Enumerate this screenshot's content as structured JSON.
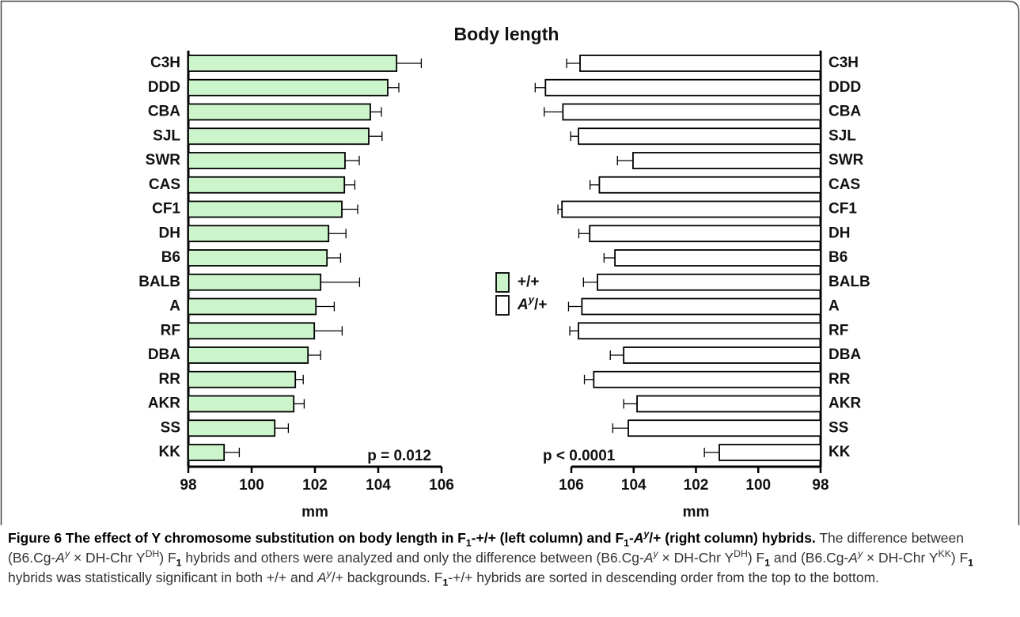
{
  "figure": {
    "title": "Body length",
    "caption": [
      {
        "text": "Figure 6 The effect of Y chromosome substitution on body length in F",
        "style": "b"
      },
      {
        "text": "1",
        "style": "bsub"
      },
      {
        "text": "-+/+ (left column) and F",
        "style": "b"
      },
      {
        "text": "1",
        "style": "bsub"
      },
      {
        "text": "-",
        "style": "b"
      },
      {
        "text": "A",
        "style": "bi"
      },
      {
        "text": "y",
        "style": "bisup"
      },
      {
        "text": "/+ (right column) hybrids.",
        "style": "b"
      },
      {
        "text": " The difference between (B6.Cg-"
      },
      {
        "text": "A",
        "style": "i"
      },
      {
        "text": "y",
        "style": "isup"
      },
      {
        "text": " × DH-Chr Y"
      },
      {
        "text": "DH",
        "style": "sup"
      },
      {
        "text": ") F"
      },
      {
        "text": "1",
        "style": "sub"
      },
      {
        "text": " hybrids and others were analyzed and only the difference between (B6.Cg-"
      },
      {
        "text": "A",
        "style": "i"
      },
      {
        "text": "y",
        "style": "isup"
      },
      {
        "text": " × DH-Chr Y"
      },
      {
        "text": "DH",
        "style": "sup"
      },
      {
        "text": ") F"
      },
      {
        "text": "1",
        "style": "sub"
      },
      {
        "text": " and (B6.Cg-"
      },
      {
        "text": "A",
        "style": "i"
      },
      {
        "text": "y",
        "style": "isup"
      },
      {
        "text": " × DH-Chr Y"
      },
      {
        "text": "KK",
        "style": "sup"
      },
      {
        "text": ") F"
      },
      {
        "text": "1",
        "style": "sub"
      },
      {
        "text": " hybrids was statistically significant in both +/+ and "
      },
      {
        "text": "A",
        "style": "i"
      },
      {
        "text": "y",
        "style": "isup"
      },
      {
        "text": "/+ backgrounds. F"
      },
      {
        "text": "1",
        "style": "sub"
      },
      {
        "text": "-+/+ hybrids are sorted in descending order from the top to the bottom."
      }
    ]
  },
  "chart_data": [
    {
      "type": "hbar",
      "xlabel": "mm",
      "annotation": "p = 0.012",
      "categories": [
        "C3H",
        "DDD",
        "CBA",
        "SJL",
        "SWR",
        "CAS",
        "CF1",
        "DH",
        "B6",
        "BALB",
        "A",
        "RF",
        "DBA",
        "RR",
        "AKR",
        "SS",
        "KK"
      ],
      "series": [
        {
          "name": [
            {
              "text": "+/+"
            }
          ],
          "color": "#ccf5cc",
          "values": [
            104.58,
            104.3,
            103.75,
            103.7,
            102.95,
            102.93,
            102.85,
            102.43,
            102.38,
            102.18,
            102.03,
            101.98,
            101.78,
            101.38,
            101.33,
            100.73,
            99.13
          ],
          "errors": [
            0.78,
            0.35,
            0.35,
            0.42,
            0.45,
            0.33,
            0.5,
            0.55,
            0.43,
            1.23,
            0.58,
            0.88,
            0.4,
            0.25,
            0.33,
            0.43,
            0.48
          ]
        }
      ],
      "xlim": [
        98,
        106
      ],
      "xticks": [
        98,
        100,
        102,
        104,
        106
      ],
      "x_reversed": false
    },
    {
      "type": "hbar",
      "xlabel": "mm",
      "annotation": "p < 0.0001",
      "categories": [
        "C3H",
        "DDD",
        "CBA",
        "SJL",
        "SWR",
        "CAS",
        "CF1",
        "DH",
        "B6",
        "BALB",
        "A",
        "RF",
        "DBA",
        "RR",
        "AKR",
        "SS",
        "KK"
      ],
      "series": [
        {
          "name": [
            {
              "text": "A",
              "style": "bi"
            },
            {
              "text": "y",
              "style": "bisup"
            },
            {
              "text": "/+"
            }
          ],
          "color": "#ffffff",
          "values": [
            105.72,
            106.83,
            106.27,
            105.77,
            104.02,
            105.1,
            106.3,
            105.41,
            104.6,
            105.16,
            105.66,
            105.77,
            104.32,
            105.28,
            103.89,
            104.17,
            101.25
          ],
          "errors": [
            0.43,
            0.33,
            0.6,
            0.25,
            0.5,
            0.3,
            0.13,
            0.35,
            0.35,
            0.45,
            0.43,
            0.28,
            0.43,
            0.3,
            0.43,
            0.5,
            0.48
          ]
        }
      ],
      "xlim": [
        98,
        106
      ],
      "xticks": [
        98,
        100,
        102,
        104,
        106
      ],
      "x_reversed": true
    }
  ]
}
